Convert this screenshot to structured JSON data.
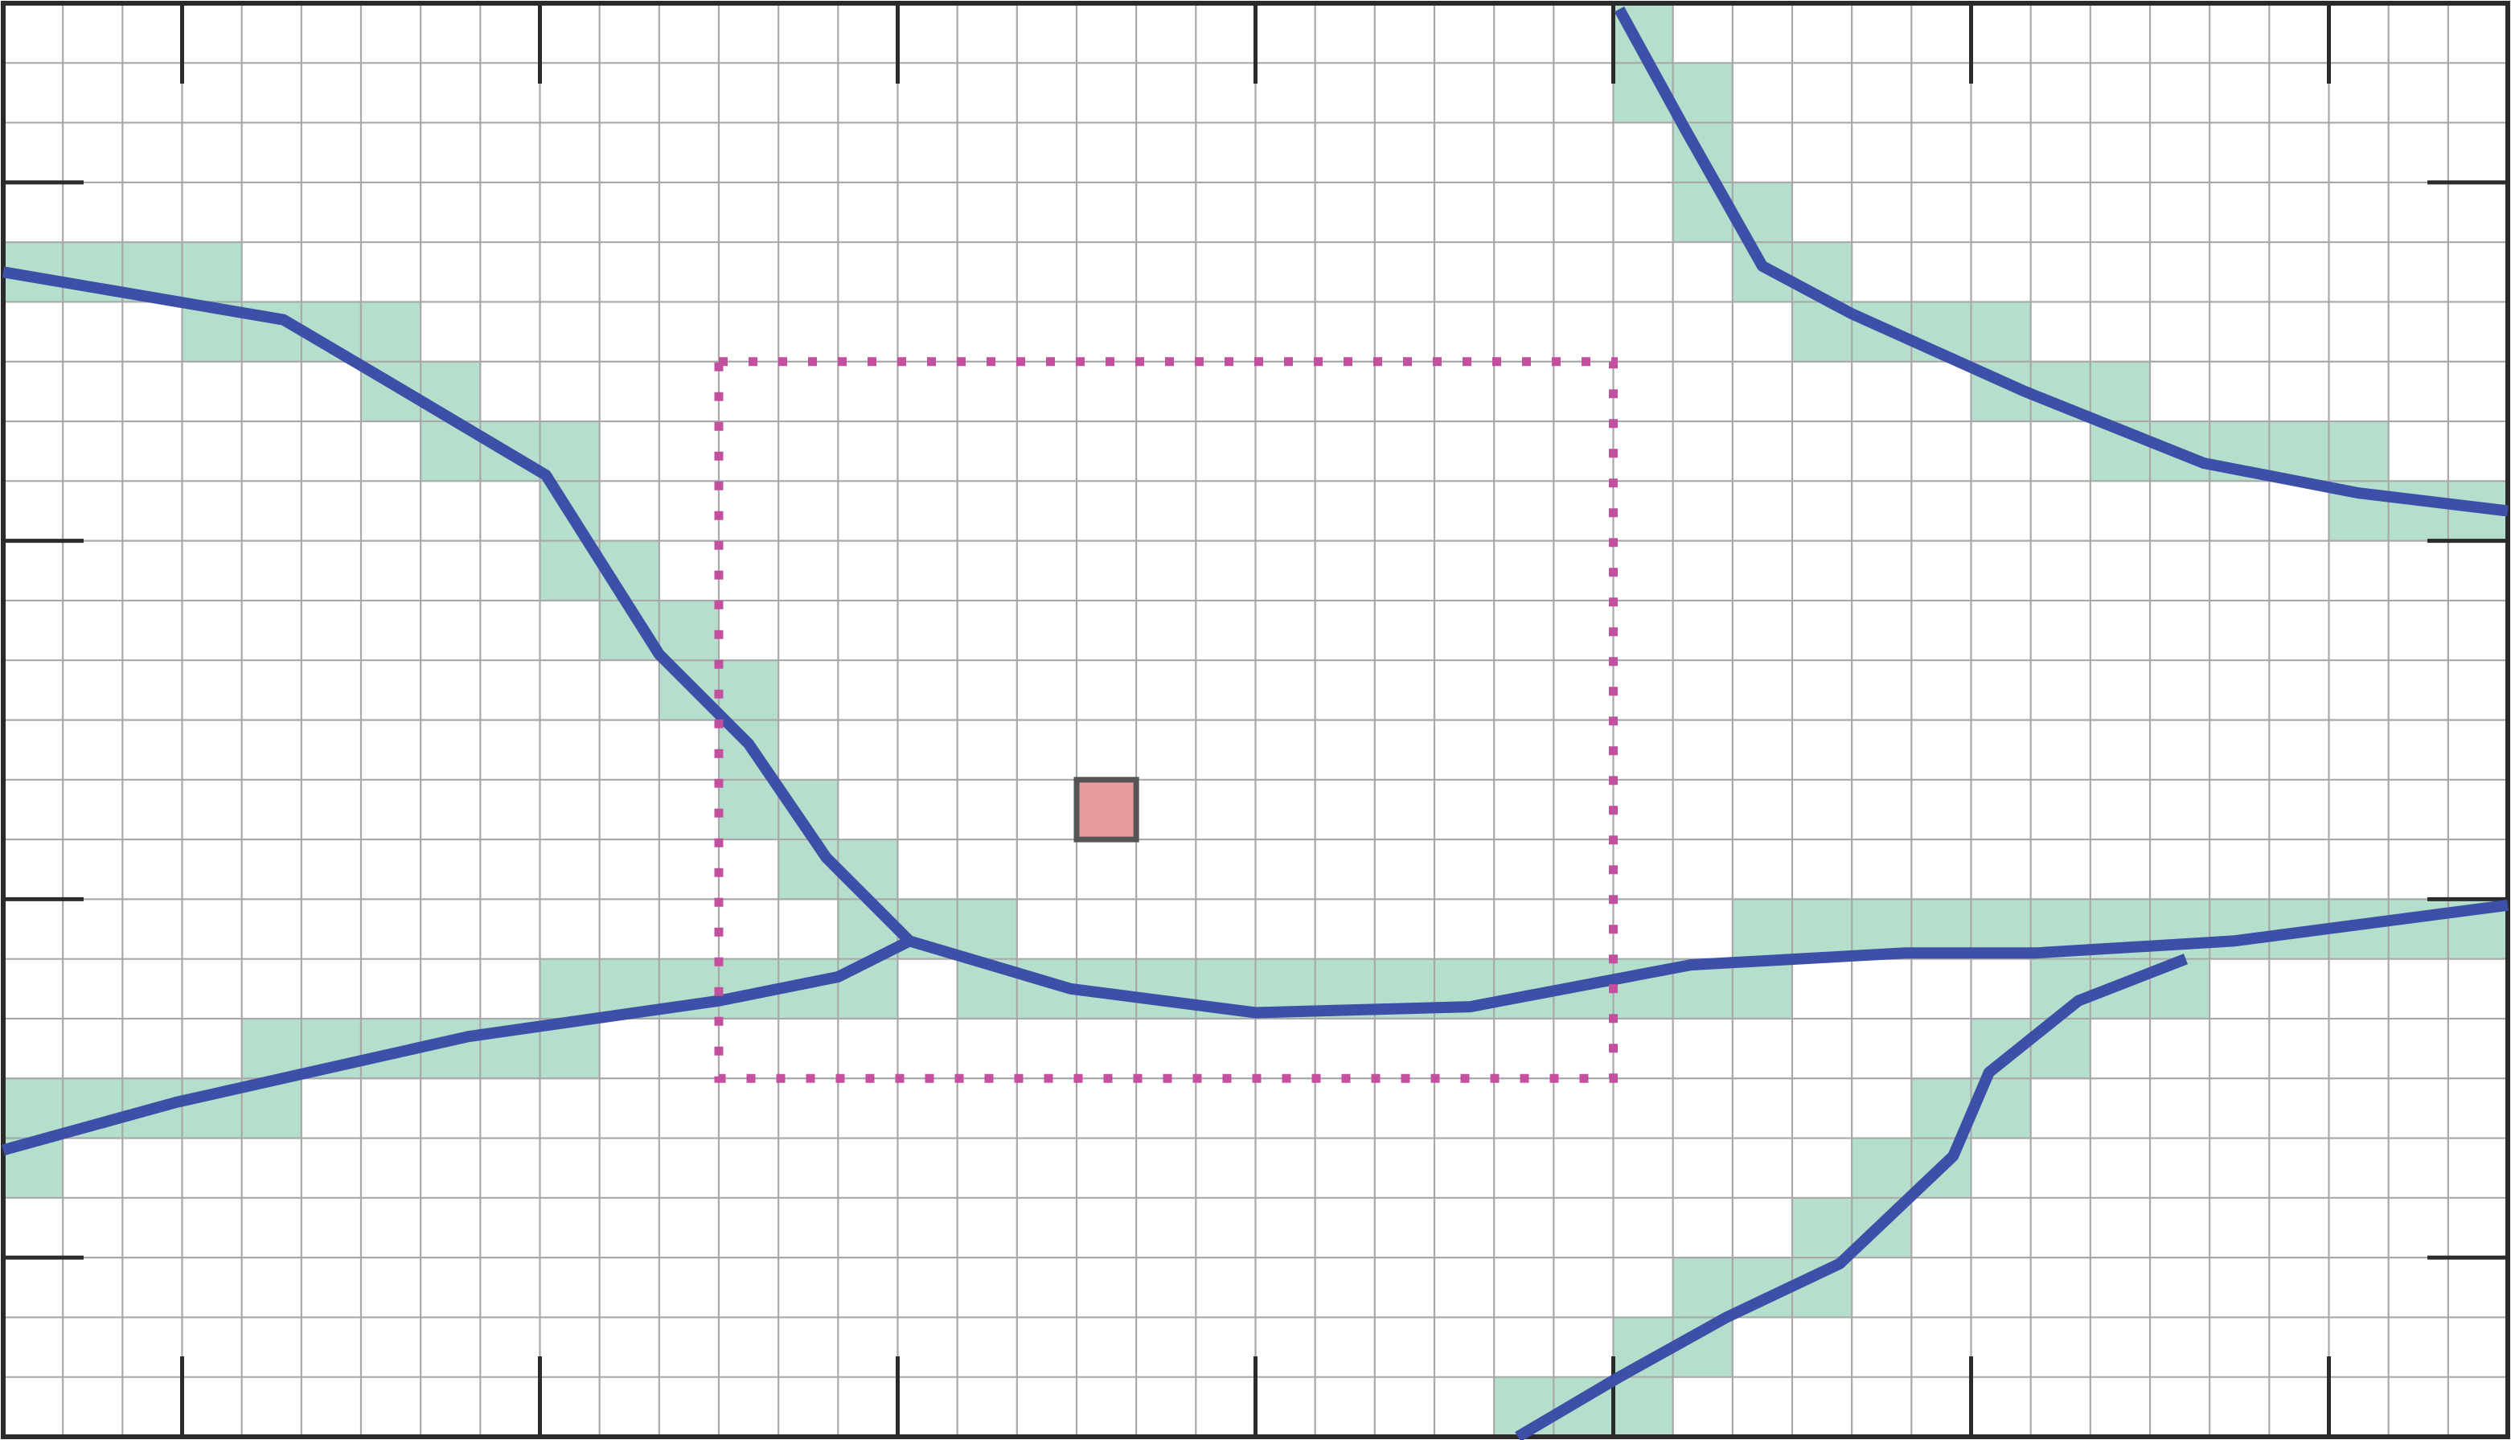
{
  "diagram": {
    "grid": {
      "columns": 42,
      "rows": 24,
      "major_tick_every": 6
    },
    "colors": {
      "background": "#ffffff",
      "grid_line": "#a8a8a8",
      "frame": "#2b2b2b",
      "filled_cell": "#b4dfcc",
      "path": "#3d4fa6",
      "query_region": "#c2509e",
      "marker_fill": "#e99a9a",
      "marker_stroke": "#555555"
    },
    "filled_cells": [
      [
        0,
        4
      ],
      [
        1,
        4
      ],
      [
        2,
        4
      ],
      [
        3,
        4
      ],
      [
        3,
        5
      ],
      [
        4,
        5
      ],
      [
        5,
        5
      ],
      [
        6,
        5
      ],
      [
        6,
        6
      ],
      [
        7,
        6
      ],
      [
        7,
        7
      ],
      [
        8,
        7
      ],
      [
        9,
        7
      ],
      [
        9,
        8
      ],
      [
        9,
        9
      ],
      [
        10,
        9
      ],
      [
        10,
        10
      ],
      [
        11,
        10
      ],
      [
        11,
        11
      ],
      [
        12,
        11
      ],
      [
        12,
        12
      ],
      [
        12,
        13
      ],
      [
        13,
        13
      ],
      [
        13,
        14
      ],
      [
        14,
        14
      ],
      [
        14,
        15
      ],
      [
        15,
        15
      ],
      [
        16,
        15
      ],
      [
        16,
        16
      ],
      [
        17,
        16
      ],
      [
        18,
        16
      ],
      [
        19,
        16
      ],
      [
        20,
        16
      ],
      [
        21,
        16
      ],
      [
        22,
        16
      ],
      [
        23,
        16
      ],
      [
        24,
        16
      ],
      [
        25,
        16
      ],
      [
        26,
        16
      ],
      [
        27,
        16
      ],
      [
        28,
        16
      ],
      [
        29,
        15
      ],
      [
        29,
        16
      ],
      [
        30,
        15
      ],
      [
        31,
        15
      ],
      [
        32,
        15
      ],
      [
        33,
        15
      ],
      [
        34,
        15
      ],
      [
        35,
        15
      ],
      [
        36,
        15
      ],
      [
        37,
        15
      ],
      [
        38,
        15
      ],
      [
        39,
        15
      ],
      [
        40,
        15
      ],
      [
        41,
        15
      ],
      [
        9,
        16
      ],
      [
        10,
        16
      ],
      [
        11,
        16
      ],
      [
        12,
        16
      ],
      [
        13,
        16
      ],
      [
        14,
        16
      ],
      [
        4,
        17
      ],
      [
        5,
        17
      ],
      [
        6,
        17
      ],
      [
        7,
        17
      ],
      [
        8,
        17
      ],
      [
        9,
        17
      ],
      [
        0,
        18
      ],
      [
        1,
        18
      ],
      [
        2,
        18
      ],
      [
        3,
        18
      ],
      [
        4,
        18
      ],
      [
        0,
        19
      ],
      [
        27,
        0
      ],
      [
        27,
        1
      ],
      [
        28,
        1
      ],
      [
        28,
        2
      ],
      [
        28,
        3
      ],
      [
        29,
        3
      ],
      [
        29,
        4
      ],
      [
        30,
        4
      ],
      [
        30,
        5
      ],
      [
        31,
        5
      ],
      [
        32,
        5
      ],
      [
        33,
        5
      ],
      [
        33,
        6
      ],
      [
        34,
        6
      ],
      [
        35,
        6
      ],
      [
        35,
        7
      ],
      [
        36,
        7
      ],
      [
        37,
        7
      ],
      [
        38,
        7
      ],
      [
        39,
        7
      ],
      [
        39,
        8
      ],
      [
        40,
        8
      ],
      [
        41,
        8
      ],
      [
        34,
        16
      ],
      [
        35,
        16
      ],
      [
        36,
        16
      ],
      [
        33,
        17
      ],
      [
        34,
        17
      ],
      [
        33,
        18
      ],
      [
        32,
        18
      ],
      [
        32,
        19
      ],
      [
        31,
        19
      ],
      [
        31,
        20
      ],
      [
        30,
        20
      ],
      [
        29,
        21
      ],
      [
        30,
        21
      ],
      [
        28,
        21
      ],
      [
        28,
        22
      ],
      [
        27,
        22
      ],
      [
        27,
        23
      ],
      [
        26,
        23
      ],
      [
        25,
        23
      ]
    ],
    "paths": [
      [
        [
          0,
          4.5
        ],
        [
          4.7,
          5.3
        ],
        [
          6.4,
          6.3
        ],
        [
          9.1,
          7.9
        ],
        [
          11,
          10.9
        ],
        [
          12.5,
          12.4
        ],
        [
          13.8,
          14.3
        ],
        [
          15.2,
          15.7
        ],
        [
          17.9,
          16.5
        ],
        [
          21,
          16.9
        ],
        [
          24.6,
          16.8
        ],
        [
          28.3,
          16.1
        ],
        [
          31.9,
          15.9
        ],
        [
          34.1,
          15.9
        ],
        [
          37.4,
          15.7
        ],
        [
          42,
          15.1
        ]
      ],
      [
        [
          0,
          19.2
        ],
        [
          2.9,
          18.4
        ],
        [
          7.8,
          17.3
        ],
        [
          12,
          16.7
        ],
        [
          14,
          16.3
        ],
        [
          15.2,
          15.7
        ]
      ],
      [
        [
          27.1,
          0.1
        ],
        [
          28.2,
          2.1
        ],
        [
          29.5,
          4.4
        ],
        [
          31,
          5.2
        ],
        [
          33.9,
          6.5
        ],
        [
          36.9,
          7.7
        ],
        [
          39.5,
          8.2
        ],
        [
          42,
          8.5
        ]
      ],
      [
        [
          25.4,
          24
        ],
        [
          27.1,
          23
        ],
        [
          28.9,
          22
        ],
        [
          30.8,
          21.1
        ],
        [
          32.7,
          19.3
        ],
        [
          33.3,
          17.9
        ],
        [
          34.8,
          16.7
        ],
        [
          36.6,
          16
        ]
      ]
    ],
    "query_region": {
      "col_start": 12,
      "row_start": 6,
      "col_end": 27,
      "row_end": 18
    },
    "marker": {
      "col": 18,
      "row": 13
    }
  }
}
